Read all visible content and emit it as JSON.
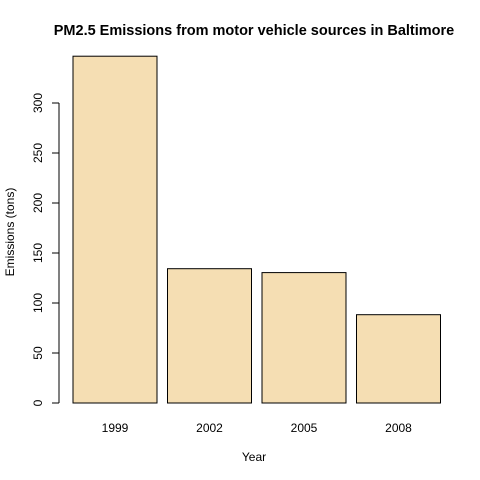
{
  "chart_data": {
    "type": "bar",
    "title": "PM2.5 Emissions from motor vehicle sources in Baltimore",
    "xlabel": "Year",
    "ylabel": "Emissions (tons)",
    "categories": [
      "1999",
      "2002",
      "2005",
      "2008"
    ],
    "values": [
      346.8,
      134.3,
      130.4,
      88.3
    ],
    "ylim": [
      0,
      350
    ],
    "yticks": [
      0,
      50,
      100,
      150,
      200,
      250,
      300
    ],
    "bar_color": "#F5DEB3",
    "grid": false,
    "legend": "none"
  }
}
